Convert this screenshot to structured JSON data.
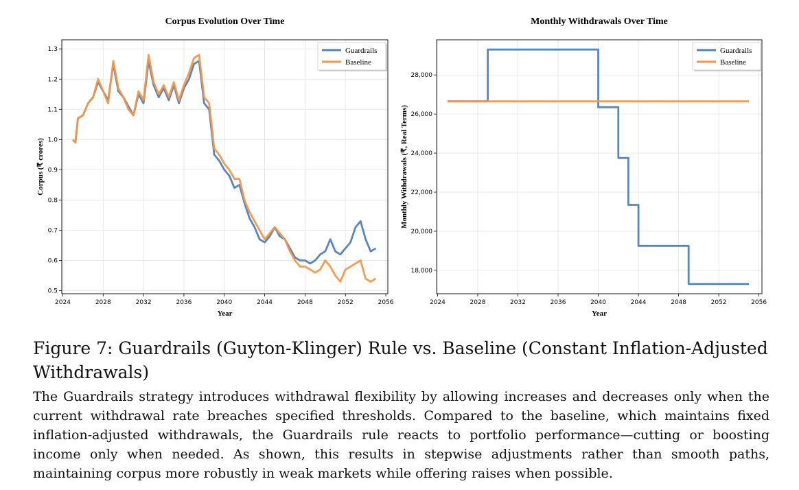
{
  "chart_data": [
    {
      "type": "line",
      "title": "Corpus Evolution Over Time",
      "xlabel": "Year",
      "ylabel": "Corpus (₹ crores)",
      "xlim": [
        2023.9,
        2056.2
      ],
      "ylim": [
        0.49,
        1.33
      ],
      "xticks": [
        2024,
        2028,
        2032,
        2036,
        2040,
        2044,
        2048,
        2052,
        2056
      ],
      "xtick_labels": [
        "2024",
        "2028",
        "2032",
        "2036",
        "2040",
        "2044",
        "2048",
        "2052",
        "2056"
      ],
      "yticks": [
        0.5,
        0.6,
        0.7,
        0.8,
        0.9,
        1.0,
        1.1,
        1.2,
        1.3
      ],
      "ytick_labels": [
        "0.5",
        "0.6",
        "0.7",
        "0.8",
        "0.9",
        "1.0",
        "1.1",
        "1.2",
        "1.3"
      ],
      "grid": true,
      "legend_position": "top-right",
      "series": [
        {
          "name": "Guardrails",
          "color": "#4f81bd",
          "x": [
            2025.0,
            2025.25,
            2025.5,
            2026.0,
            2026.5,
            2027.0,
            2027.5,
            2028.0,
            2028.5,
            2029.0,
            2029.5,
            2030.0,
            2030.5,
            2031.0,
            2031.5,
            2032.0,
            2032.5,
            2033.0,
            2033.5,
            2034.0,
            2034.5,
            2035.0,
            2035.5,
            2036.0,
            2036.5,
            2037.0,
            2037.5,
            2038.0,
            2038.5,
            2039.0,
            2039.5,
            2040.0,
            2040.5,
            2041.0,
            2041.5,
            2042.0,
            2042.5,
            2043.0,
            2043.5,
            2044.0,
            2044.5,
            2045.0,
            2045.5,
            2046.0,
            2046.5,
            2047.0,
            2047.5,
            2048.0,
            2048.5,
            2049.0,
            2049.5,
            2050.0,
            2050.5,
            2051.0,
            2051.5,
            2052.0,
            2052.5,
            2053.0,
            2053.5,
            2054.0,
            2054.5,
            2055.0
          ],
          "y": [
            1.0,
            0.99,
            1.07,
            1.08,
            1.12,
            1.14,
            1.19,
            1.16,
            1.13,
            1.25,
            1.16,
            1.14,
            1.11,
            1.08,
            1.15,
            1.12,
            1.26,
            1.18,
            1.14,
            1.17,
            1.13,
            1.18,
            1.12,
            1.17,
            1.2,
            1.25,
            1.26,
            1.12,
            1.1,
            0.95,
            0.93,
            0.9,
            0.88,
            0.84,
            0.85,
            0.79,
            0.74,
            0.71,
            0.67,
            0.66,
            0.68,
            0.71,
            0.68,
            0.67,
            0.64,
            0.61,
            0.6,
            0.6,
            0.59,
            0.6,
            0.62,
            0.63,
            0.67,
            0.63,
            0.62,
            0.64,
            0.66,
            0.71,
            0.73,
            0.67,
            0.63,
            0.64
          ]
        },
        {
          "name": "Baseline",
          "color": "#f79646",
          "x": [
            2025.0,
            2025.25,
            2025.5,
            2026.0,
            2026.5,
            2027.0,
            2027.5,
            2028.0,
            2028.5,
            2029.0,
            2029.5,
            2030.0,
            2030.5,
            2031.0,
            2031.5,
            2032.0,
            2032.5,
            2033.0,
            2033.5,
            2034.0,
            2034.5,
            2035.0,
            2035.5,
            2036.0,
            2036.5,
            2037.0,
            2037.5,
            2038.0,
            2038.5,
            2039.0,
            2039.5,
            2040.0,
            2040.5,
            2041.0,
            2041.5,
            2042.0,
            2042.5,
            2043.0,
            2043.5,
            2044.0,
            2044.5,
            2045.0,
            2045.5,
            2046.0,
            2046.5,
            2047.0,
            2047.5,
            2048.0,
            2048.5,
            2049.0,
            2049.5,
            2050.0,
            2050.5,
            2051.0,
            2051.5,
            2052.0,
            2052.5,
            2053.0,
            2053.5,
            2054.0,
            2054.5,
            2055.0
          ],
          "y": [
            1.0,
            0.99,
            1.07,
            1.08,
            1.12,
            1.14,
            1.2,
            1.16,
            1.12,
            1.26,
            1.17,
            1.14,
            1.1,
            1.08,
            1.16,
            1.13,
            1.28,
            1.19,
            1.15,
            1.18,
            1.14,
            1.19,
            1.13,
            1.18,
            1.22,
            1.27,
            1.28,
            1.14,
            1.12,
            0.97,
            0.95,
            0.92,
            0.9,
            0.87,
            0.87,
            0.8,
            0.76,
            0.73,
            0.7,
            0.67,
            0.69,
            0.71,
            0.69,
            0.67,
            0.63,
            0.6,
            0.58,
            0.58,
            0.57,
            0.56,
            0.57,
            0.6,
            0.58,
            0.55,
            0.53,
            0.57,
            0.58,
            0.59,
            0.6,
            0.54,
            0.53,
            0.54
          ]
        }
      ]
    },
    {
      "type": "line",
      "title": "Monthly Withdrawals Over Time",
      "xlabel": "Year",
      "ylabel": "Monthly Withdrawals (₹, Real Terms)",
      "xlim": [
        2023.9,
        2056.3
      ],
      "ylim": [
        16800,
        29800
      ],
      "xticks": [
        2024,
        2028,
        2032,
        2036,
        2040,
        2044,
        2048,
        2052,
        2056
      ],
      "xtick_labels": [
        "2024",
        "2028",
        "2032",
        "2036",
        "2040",
        "2044",
        "2048",
        "2052",
        "2056"
      ],
      "yticks": [
        18000,
        20000,
        22000,
        24000,
        26000,
        28000
      ],
      "ytick_labels": [
        "18,000",
        "20,000",
        "22,000",
        "24,000",
        "26,000",
        "28,000"
      ],
      "grid": true,
      "legend_position": "top-right",
      "series": [
        {
          "name": "Guardrails",
          "color": "#4f81bd",
          "x": [
            2025.0,
            2029.0,
            2029.0,
            2040.0,
            2040.0,
            2042.0,
            2042.0,
            2043.0,
            2043.0,
            2044.0,
            2044.0,
            2049.0,
            2049.0,
            2055.0
          ],
          "y": [
            26650,
            26650,
            29300,
            29300,
            26350,
            26350,
            23750,
            23750,
            21350,
            21350,
            19250,
            19250,
            17300,
            17300
          ]
        },
        {
          "name": "Baseline",
          "color": "#f79646",
          "x": [
            2025.0,
            2055.0
          ],
          "y": [
            26650,
            26650
          ]
        }
      ]
    }
  ],
  "caption": {
    "title": "Figure 7: Guardrails (Guyton-Klinger) Rule vs. Baseline (Constant Inflation-Adjusted Withdrawals)",
    "body": "The Guardrails strategy introduces withdrawal flexibility by allowing increases and decreases only when the current withdrawal rate breaches specified thresholds. Compared to the baseline, which maintains fixed inflation-adjusted withdrawals, the Guardrails rule reacts to portfolio performance—cutting or boosting income only when needed. As shown, this results in stepwise adjustments rather than smooth paths, maintaining corpus more robustly in weak markets while offering raises when possible."
  }
}
